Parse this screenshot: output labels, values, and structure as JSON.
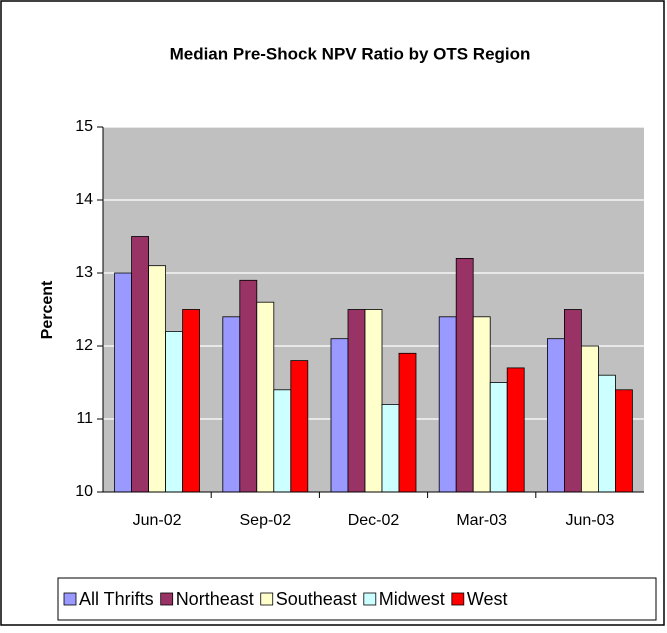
{
  "chart_data": {
    "type": "bar",
    "title": "Median Pre-Shock NPV Ratio by OTS Region",
    "ylabel": "Percent",
    "categories": [
      "Jun-02",
      "Sep-02",
      "Dec-02",
      "Mar-03",
      "Jun-03"
    ],
    "series": [
      {
        "name": "All Thrifts",
        "color": "#9999ff",
        "values": [
          13.0,
          12.4,
          12.1,
          12.4,
          12.1
        ]
      },
      {
        "name": "Northeast",
        "color": "#993366",
        "values": [
          13.5,
          12.9,
          12.5,
          13.2,
          12.5
        ]
      },
      {
        "name": "Southeast",
        "color": "#ffffcc",
        "values": [
          13.1,
          12.6,
          12.5,
          12.4,
          12.0
        ]
      },
      {
        "name": "Midwest",
        "color": "#ccffff",
        "values": [
          12.2,
          11.4,
          11.2,
          11.5,
          11.6
        ]
      },
      {
        "name": "West",
        "color": "#ff0000",
        "values": [
          12.5,
          11.8,
          11.9,
          11.7,
          11.4
        ]
      }
    ],
    "ylim": [
      10,
      15
    ],
    "yticks": [
      10,
      11,
      12,
      13,
      14,
      15
    ],
    "grid": true,
    "legend": "bottom"
  }
}
